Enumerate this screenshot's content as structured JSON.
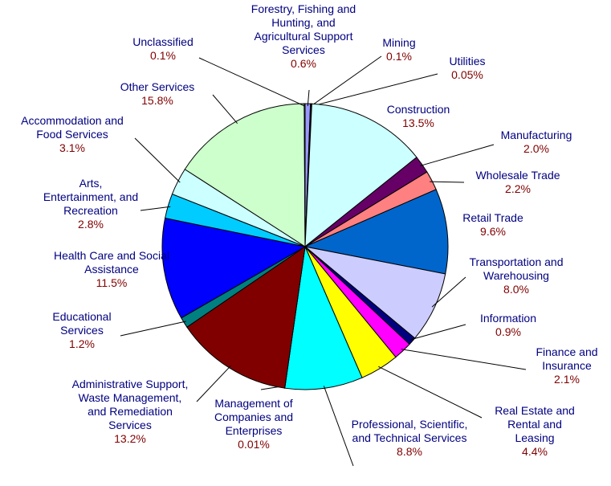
{
  "chart_data": {
    "type": "pie",
    "categories": [
      "Forestry, Fishing and Hunting, and Agricultural Support Services",
      "Mining",
      "Utilities",
      "Construction",
      "Manufacturing",
      "Wholesale Trade",
      "Retail Trade",
      "Transportation and Warehousing",
      "Information",
      "Finance and Insurance",
      "Real Estate and Rental and Leasing",
      "Professional, Scientific, and Technical Services",
      "Management of Companies and Enterprises",
      "Administrative Support, Waste Management, and Remediation Services",
      "Educational Services",
      "Health Care and Social Assistance",
      "Arts, Entertainment, and Recreation",
      "Accommodation and Food Services",
      "Other Services",
      "Unclassified"
    ],
    "values": [
      0.6,
      0.1,
      0.05,
      13.5,
      2.0,
      2.2,
      9.6,
      8.0,
      0.9,
      2.1,
      4.4,
      8.8,
      0.01,
      13.2,
      1.2,
      11.5,
      2.8,
      3.1,
      15.8,
      0.1
    ],
    "value_labels": [
      "0.6%",
      "0.1%",
      "0.05%",
      "13.5%",
      "2.0%",
      "2.2%",
      "9.6%",
      "8.0%",
      "0.9%",
      "2.1%",
      "4.4%",
      "8.8%",
      "0.01%",
      "13.2%",
      "1.2%",
      "11.5%",
      "2.8%",
      "3.1%",
      "15.8%",
      "0.1%"
    ],
    "colors": [
      "#9999ff",
      "#993366",
      "#ffffcc",
      "#ccffff",
      "#660066",
      "#ff8080",
      "#0066cc",
      "#ccccff",
      "#000080",
      "#ff00ff",
      "#ffff00",
      "#00ffff",
      "#800080",
      "#800000",
      "#008080",
      "#0000ff",
      "#00ccff",
      "#ccffff",
      "#ccffcc",
      "#ffffff"
    ]
  }
}
